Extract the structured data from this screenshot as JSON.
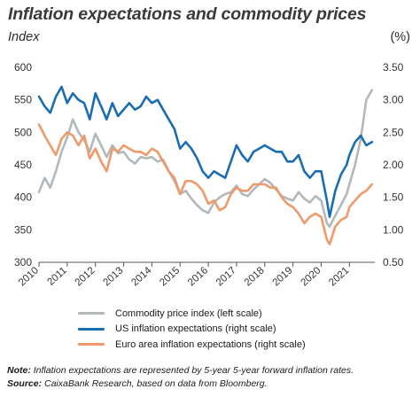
{
  "page": {
    "title": "Inflation expectations and commodity prices",
    "left_unit": "Index",
    "right_unit": "(%)"
  },
  "chart_data": {
    "type": "line",
    "title": "Inflation expectations and commodity prices",
    "ylabel": "Index",
    "y2label": "(%)",
    "xlim": [
      2010,
      2021.9
    ],
    "ylim": [
      300,
      600
    ],
    "y2lim": [
      0.5,
      3.5
    ],
    "grid": false,
    "legend_position": "bottom",
    "x_ticks": [
      2010,
      2011,
      2012,
      2013,
      2014,
      2015,
      2016,
      2017,
      2018,
      2019,
      2020,
      2021
    ],
    "y_ticks": [
      300,
      350,
      400,
      450,
      500,
      550,
      600
    ],
    "y2_ticks": [
      "0.50",
      "1.00",
      "1.50",
      "2.00",
      "2.50",
      "3.00",
      "3.50"
    ],
    "series": [
      {
        "name": "Commodity price index (left scale)",
        "axis": "left",
        "color": "#b3b8bb",
        "x": [
          2010,
          2010.2,
          2010.4,
          2010.6,
          2010.8,
          2011,
          2011.2,
          2011.4,
          2011.6,
          2011.8,
          2012,
          2012.2,
          2012.4,
          2012.6,
          2012.8,
          2013,
          2013.2,
          2013.4,
          2013.6,
          2013.8,
          2014,
          2014.2,
          2014.4,
          2014.6,
          2014.8,
          2015,
          2015.2,
          2015.4,
          2015.6,
          2015.8,
          2016,
          2016.2,
          2016.4,
          2016.6,
          2016.8,
          2017,
          2017.2,
          2017.4,
          2017.6,
          2017.8,
          2018,
          2018.2,
          2018.4,
          2018.6,
          2018.8,
          2019,
          2019.2,
          2019.4,
          2019.6,
          2019.8,
          2020,
          2020.2,
          2020.3,
          2020.5,
          2020.7,
          2020.9,
          2021,
          2021.2,
          2021.4,
          2021.6,
          2021.8
        ],
        "y": [
          408,
          430,
          415,
          440,
          470,
          492,
          520,
          500,
          488,
          470,
          498,
          480,
          462,
          480,
          468,
          470,
          458,
          452,
          462,
          460,
          462,
          455,
          458,
          440,
          425,
          405,
          410,
          398,
          388,
          380,
          376,
          392,
          400,
          405,
          408,
          418,
          405,
          402,
          412,
          420,
          428,
          422,
          412,
          402,
          398,
          395,
          408,
          398,
          392,
          402,
          395,
          360,
          355,
          372,
          388,
          405,
          420,
          450,
          490,
          550,
          565
        ]
      },
      {
        "name": "US inflation expectations (right scale)",
        "axis": "right",
        "color": "#1b6db3",
        "x": [
          2010,
          2010.2,
          2010.4,
          2010.6,
          2010.8,
          2011,
          2011.2,
          2011.4,
          2011.6,
          2011.8,
          2012,
          2012.2,
          2012.4,
          2012.6,
          2012.8,
          2013,
          2013.2,
          2013.4,
          2013.6,
          2013.8,
          2014,
          2014.2,
          2014.4,
          2014.6,
          2014.8,
          2015,
          2015.2,
          2015.4,
          2015.6,
          2015.8,
          2016,
          2016.2,
          2016.4,
          2016.6,
          2016.8,
          2017,
          2017.2,
          2017.4,
          2017.6,
          2017.8,
          2018,
          2018.2,
          2018.4,
          2018.6,
          2018.8,
          2019,
          2019.2,
          2019.4,
          2019.6,
          2019.8,
          2020,
          2020.2,
          2020.3,
          2020.5,
          2020.7,
          2020.9,
          2021,
          2021.2,
          2021.4,
          2021.6,
          2021.8
        ],
        "y": [
          3.05,
          2.9,
          2.8,
          3.05,
          3.2,
          2.95,
          3.1,
          3.0,
          2.95,
          2.7,
          3.1,
          2.9,
          2.7,
          2.95,
          2.75,
          2.85,
          2.95,
          2.85,
          2.9,
          3.05,
          2.95,
          3.0,
          2.85,
          2.7,
          2.55,
          2.25,
          2.35,
          2.25,
          2.1,
          1.9,
          1.8,
          1.9,
          1.85,
          1.8,
          2.05,
          2.3,
          2.15,
          2.05,
          2.2,
          2.25,
          2.3,
          2.25,
          2.2,
          2.2,
          2.05,
          2.05,
          2.15,
          1.9,
          1.8,
          1.9,
          1.9,
          1.45,
          1.2,
          1.6,
          1.85,
          2.0,
          2.15,
          2.35,
          2.45,
          2.3,
          2.35
        ]
      },
      {
        "name": "Euro area inflation expectations (right scale)",
        "axis": "right",
        "color": "#ee9a6a",
        "x": [
          2010,
          2010.2,
          2010.4,
          2010.6,
          2010.8,
          2011,
          2011.2,
          2011.4,
          2011.6,
          2011.8,
          2012,
          2012.2,
          2012.4,
          2012.6,
          2012.8,
          2013,
          2013.2,
          2013.4,
          2013.6,
          2013.8,
          2014,
          2014.2,
          2014.4,
          2014.6,
          2014.8,
          2015,
          2015.2,
          2015.4,
          2015.6,
          2015.8,
          2016,
          2016.2,
          2016.4,
          2016.6,
          2016.8,
          2017,
          2017.2,
          2017.4,
          2017.6,
          2017.8,
          2018,
          2018.2,
          2018.4,
          2018.6,
          2018.8,
          2019,
          2019.2,
          2019.4,
          2019.6,
          2019.8,
          2020,
          2020.2,
          2020.3,
          2020.5,
          2020.7,
          2020.9,
          2021,
          2021.2,
          2021.4,
          2021.6,
          2021.8
        ],
        "y": [
          2.62,
          2.45,
          2.3,
          2.15,
          2.4,
          2.5,
          2.45,
          2.3,
          2.45,
          2.1,
          2.25,
          2.05,
          1.9,
          2.25,
          2.2,
          2.3,
          2.25,
          2.2,
          2.2,
          2.15,
          2.25,
          2.2,
          2.05,
          1.9,
          1.8,
          1.55,
          1.75,
          1.75,
          1.7,
          1.6,
          1.4,
          1.45,
          1.3,
          1.35,
          1.55,
          1.65,
          1.6,
          1.6,
          1.7,
          1.7,
          1.7,
          1.65,
          1.65,
          1.5,
          1.4,
          1.35,
          1.25,
          1.1,
          1.2,
          1.25,
          1.2,
          0.85,
          0.78,
          1.05,
          1.15,
          1.2,
          1.35,
          1.45,
          1.55,
          1.6,
          1.7
        ]
      }
    ]
  },
  "legend": {
    "items": [
      {
        "label": "Commodity price index (left scale)",
        "color": "#b3b8bb"
      },
      {
        "label": "US inflation expectations (right scale)",
        "color": "#1b6db3"
      },
      {
        "label": "Euro area inflation expectations (right scale)",
        "color": "#ee9a6a"
      }
    ]
  },
  "notes": {
    "note_label": "Note:",
    "note_text": " Inflation expectations are represented by 5-year 5-year forward inflation rates.",
    "source_label": "Source:",
    "source_text": " CaixaBank Research, based on data from Bloomberg."
  }
}
